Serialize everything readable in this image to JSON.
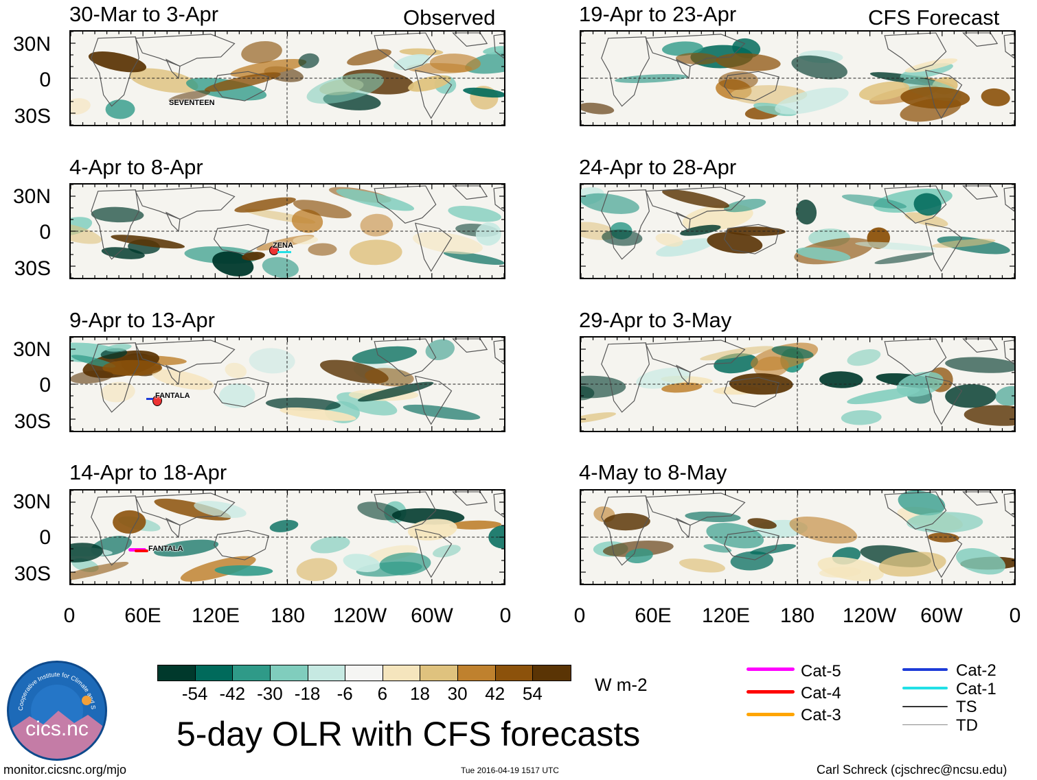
{
  "header": {
    "observed_label": "Observed",
    "forecast_label": "CFS Forecast"
  },
  "panels": [
    {
      "title": "30-Mar to 3-Apr",
      "storm": "SEVENTEEN"
    },
    {
      "title": "4-Apr to 8-Apr",
      "storm": "ZENA"
    },
    {
      "title": "9-Apr to 13-Apr",
      "storm": "FANTALA"
    },
    {
      "title": "14-Apr to 18-Apr",
      "storm": "FANTALA"
    },
    {
      "title": "19-Apr to 23-Apr"
    },
    {
      "title": "24-Apr to 28-Apr"
    },
    {
      "title": "29-Apr to 3-May"
    },
    {
      "title": "4-May to 8-May"
    }
  ],
  "lat_ticks": [
    "30N",
    "0",
    "30S"
  ],
  "lon_ticks": [
    "0",
    "60E",
    "120E",
    "180",
    "120W",
    "60W",
    "0"
  ],
  "colorbar": {
    "unit": "W m-2",
    "labels": [
      "-54",
      "-42",
      "-30",
      "-18",
      "-6",
      "6",
      "18",
      "30",
      "42",
      "54"
    ],
    "colors": [
      "#00392c",
      "#006a5b",
      "#2f9a88",
      "#80cdbd",
      "#c6e9e2",
      "#f5f5f3",
      "#f5e5bd",
      "#dfc27e",
      "#bf812e",
      "#8c520b",
      "#5a3405"
    ]
  },
  "legend": [
    {
      "label": "Cat-5",
      "color": "#ff00ff"
    },
    {
      "label": "Cat-4",
      "color": "#ff0000"
    },
    {
      "label": "Cat-3",
      "color": "#ffa500"
    },
    {
      "label": "Cat-2",
      "color": "#1e3cd8"
    },
    {
      "label": "Cat-1",
      "color": "#22e0e6"
    },
    {
      "label": "TS",
      "color": "#333333"
    },
    {
      "label": "TD",
      "color": "#888888"
    }
  ],
  "logo": {
    "text": "cics.nc",
    "ring_text": "Cooperative Institute for Climate and Satellites"
  },
  "main_title": "5-day OLR with CFS forecasts",
  "footer": {
    "url": "monitor.cicsnc.org/mjo",
    "timestamp": "Tue 2016-04-19 1517 UTC",
    "author": "Carl Schreck (cjschrec@ncsu.edu)"
  }
}
